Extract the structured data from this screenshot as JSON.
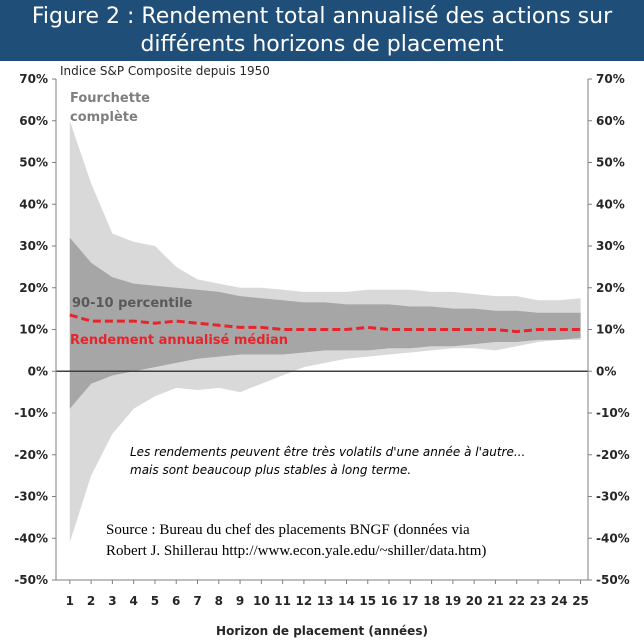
{
  "title": {
    "line1": "Figure 2 : Rendement total annualisé des actions sur",
    "line2": "différents horizons de placement"
  },
  "source": {
    "line1": "Source : Bureau du chef des placements BNGF (données via",
    "line2": "Robert J. Shillerau http://www.econ.yale.edu/~shiller/data.htm)"
  },
  "colors": {
    "full_range": "#d9d9d9",
    "percentile_range": "#a6a6a6",
    "median": "#e8232b",
    "title_bar": "#1f4e79",
    "zero_line": "#404040",
    "range_label": "#7f7f7f",
    "percentile_label": "#595959"
  },
  "chart_data": {
    "type": "area",
    "subtitle": "Indice S&P Composite depuis 1950",
    "xlabel": "Horizon de placement (années)",
    "ylabel": "",
    "ylim": [
      -50,
      70
    ],
    "yticks": [
      -50,
      -40,
      -30,
      -20,
      -10,
      0,
      10,
      20,
      30,
      40,
      50,
      60,
      70
    ],
    "ytick_labels": [
      "-50%",
      "-40%",
      "-30%",
      "-20%",
      "-10%",
      "0%",
      "10%",
      "20%",
      "30%",
      "40%",
      "50%",
      "60%",
      "70%"
    ],
    "x": [
      1,
      2,
      3,
      4,
      5,
      6,
      7,
      8,
      9,
      10,
      11,
      12,
      13,
      14,
      15,
      16,
      17,
      18,
      19,
      20,
      21,
      22,
      23,
      24,
      25
    ],
    "x_tick_labels": [
      "1",
      "2",
      "3",
      "4",
      "5",
      "6",
      "7",
      "8",
      "9",
      "10",
      "11",
      "12",
      "13",
      "14",
      "15",
      "16",
      "17",
      "18",
      "19",
      "20",
      "21",
      "22",
      "23",
      "24",
      "25"
    ],
    "grid": false,
    "series": [
      {
        "name": "Fourchette complète",
        "kind": "band",
        "upper": [
          60,
          45,
          33,
          31,
          30,
          25,
          22,
          21,
          20,
          20,
          19.5,
          19,
          19,
          19,
          19.5,
          19.5,
          19.5,
          19,
          19,
          18.5,
          18,
          18,
          17,
          17,
          17.5
        ],
        "lower": [
          -41,
          -25,
          -15,
          -9,
          -6,
          -4,
          -4.5,
          -4,
          -5,
          -3,
          -1,
          1,
          2,
          3,
          3.5,
          4,
          4.5,
          5,
          5.5,
          5.5,
          5,
          6,
          7,
          7.5,
          7.5
        ]
      },
      {
        "name": "90-10 percentile",
        "kind": "band",
        "upper": [
          32,
          26,
          22.5,
          21,
          20.5,
          20,
          19.5,
          19,
          18,
          17.5,
          17,
          16.5,
          16.5,
          16,
          16,
          16,
          15.5,
          15.5,
          15,
          15,
          14.5,
          14.5,
          14,
          14,
          14
        ],
        "lower": [
          -9,
          -3,
          -1,
          0,
          1,
          2,
          3,
          3.5,
          4,
          4,
          4,
          4.5,
          5,
          5,
          5,
          5.5,
          5.5,
          6,
          6,
          6.5,
          7,
          7,
          7.5,
          7.5,
          8
        ]
      },
      {
        "name": "Rendement annualisé médian",
        "kind": "line",
        "values": [
          13.5,
          12,
          12,
          12,
          11.5,
          12,
          11.5,
          11,
          10.5,
          10.5,
          10,
          10,
          10,
          10,
          10.5,
          10,
          10,
          10,
          10,
          10,
          10,
          9.5,
          10,
          10,
          10
        ]
      }
    ],
    "annotations": {
      "full_range_label": [
        "Fourchette",
        "complète"
      ],
      "percentile_label": "90-10 percentile",
      "median_label": "Rendement annualisé médian",
      "note": [
        "Les rendements peuvent être très volatils d'une année à l'autre...",
        "mais sont beaucoup plus stables à long terme."
      ]
    }
  }
}
